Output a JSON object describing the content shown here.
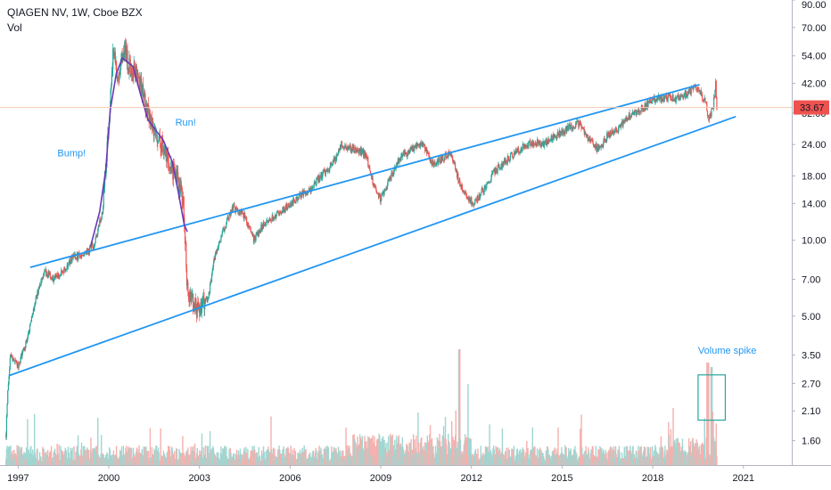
{
  "header": {
    "title": "QIAGEN NV, 1W, Cboe BZX",
    "indicator": "Vol"
  },
  "colors": {
    "up": "#26a69a",
    "down": "#ef5350",
    "volume_up": "#9fd6d1",
    "volume_down": "#f5b0ae",
    "trendline": "#2196f3",
    "curve": "#673ab7",
    "annotation": "#2196f3",
    "price_line": "#f5c6b0",
    "price_badge": "#ef5350",
    "axis_line": "#b2b5be"
  },
  "chart_data": {
    "type": "candlestick",
    "scale": "log",
    "xlim": [
      1996.4,
      2022.6
    ],
    "ylim": [
      1.28,
      90
    ],
    "x_ticks": [
      "1997",
      "2000",
      "2003",
      "2006",
      "2009",
      "2012",
      "2015",
      "2018",
      "2021"
    ],
    "y_ticks": [
      "90.00",
      "70.00",
      "54.00",
      "42.00",
      "32.00",
      "24.00",
      "18.00",
      "14.00",
      "10.00",
      "7.00",
      "5.00",
      "3.50",
      "2.70",
      "2.10",
      "1.60"
    ],
    "last_price": "33.67",
    "last_price_value": 33.67,
    "price_path": [
      [
        1996.6,
        1.7
      ],
      [
        1996.65,
        2.5
      ],
      [
        1996.75,
        3.5
      ],
      [
        1997.0,
        3.2
      ],
      [
        1997.3,
        4.0
      ],
      [
        1997.6,
        6.0
      ],
      [
        1997.9,
        7.5
      ],
      [
        1998.2,
        7.0
      ],
      [
        1998.5,
        7.5
      ],
      [
        1998.8,
        8.5
      ],
      [
        1999.2,
        8.8
      ],
      [
        1999.5,
        9.5
      ],
      [
        1999.8,
        13.0
      ],
      [
        2000.0,
        30.0
      ],
      [
        2000.15,
        56.0
      ],
      [
        2000.3,
        45.0
      ],
      [
        2000.5,
        58.0
      ],
      [
        2000.7,
        48.0
      ],
      [
        2001.0,
        44.0
      ],
      [
        2001.3,
        32.0
      ],
      [
        2001.6,
        26.0
      ],
      [
        2001.9,
        22.0
      ],
      [
        2002.2,
        18.0
      ],
      [
        2002.45,
        15.0
      ],
      [
        2002.6,
        6.5
      ],
      [
        2002.8,
        5.5
      ],
      [
        2003.0,
        5.2
      ],
      [
        2003.3,
        6.0
      ],
      [
        2003.5,
        8.5
      ],
      [
        2003.8,
        11.0
      ],
      [
        2004.1,
        13.5
      ],
      [
        2004.5,
        12.5
      ],
      [
        2004.8,
        10.0
      ],
      [
        2005.1,
        11.5
      ],
      [
        2005.5,
        12.5
      ],
      [
        2005.9,
        13.5
      ],
      [
        2006.3,
        15.0
      ],
      [
        2006.7,
        16.0
      ],
      [
        2007.0,
        18.0
      ],
      [
        2007.4,
        20.0
      ],
      [
        2007.7,
        24.0
      ],
      [
        2008.1,
        23.0
      ],
      [
        2008.5,
        22.0
      ],
      [
        2008.8,
        16.0
      ],
      [
        2009.0,
        14.5
      ],
      [
        2009.3,
        17.5
      ],
      [
        2009.6,
        21.0
      ],
      [
        2010.0,
        23.0
      ],
      [
        2010.4,
        24.0
      ],
      [
        2010.7,
        20.0
      ],
      [
        2011.0,
        21.0
      ],
      [
        2011.3,
        22.5
      ],
      [
        2011.6,
        17.0
      ],
      [
        2011.9,
        14.5
      ],
      [
        2012.1,
        14.0
      ],
      [
        2012.4,
        16.0
      ],
      [
        2012.8,
        19.0
      ],
      [
        2013.2,
        21.0
      ],
      [
        2013.6,
        23.0
      ],
      [
        2014.0,
        24.5
      ],
      [
        2014.4,
        24.0
      ],
      [
        2014.8,
        26.0
      ],
      [
        2015.2,
        28.0
      ],
      [
        2015.6,
        29.0
      ],
      [
        2015.9,
        25.0
      ],
      [
        2016.2,
        23.0
      ],
      [
        2016.5,
        26.0
      ],
      [
        2016.9,
        28.0
      ],
      [
        2017.2,
        31.0
      ],
      [
        2017.6,
        33.0
      ],
      [
        2018.0,
        36.0
      ],
      [
        2018.4,
        37.0
      ],
      [
        2018.8,
        36.5
      ],
      [
        2019.1,
        38.0
      ],
      [
        2019.35,
        40.0
      ],
      [
        2019.6,
        38.5
      ],
      [
        2019.75,
        35.0
      ],
      [
        2019.85,
        30.0
      ],
      [
        2019.92,
        32.0
      ],
      [
        2020.0,
        34.0
      ],
      [
        2020.08,
        42.0
      ],
      [
        2020.12,
        33.67
      ]
    ],
    "trendlines": [
      {
        "name": "upper",
        "from": [
          1997.4,
          7.8
        ],
        "to": [
          2019.55,
          41.5
        ]
      },
      {
        "name": "lower",
        "from": [
          1996.7,
          2.9
        ],
        "to": [
          2020.75,
          31.0
        ]
      }
    ],
    "bump_curve": [
      [
        1999.4,
        9.5
      ],
      [
        1999.7,
        13.0
      ],
      [
        1999.9,
        19.0
      ],
      [
        2000.05,
        33.0
      ],
      [
        2000.25,
        46.0
      ],
      [
        2000.45,
        53.0
      ],
      [
        2000.8,
        49.0
      ],
      [
        2001.05,
        38.0
      ],
      [
        2001.3,
        30.0
      ],
      [
        2001.8,
        25.0
      ],
      [
        2002.1,
        20.5
      ],
      [
        2002.3,
        15.5
      ],
      [
        2002.5,
        11.5
      ],
      [
        2002.6,
        10.8
      ]
    ],
    "annotations": [
      {
        "text": "Bump!",
        "at": [
          1998.3,
          21.5
        ]
      },
      {
        "text": "Run!",
        "at": [
          2002.2,
          28.5
        ]
      },
      {
        "text": "Volume spike",
        "at": [
          2019.5,
          3.55
        ]
      }
    ],
    "volume_spike_box": {
      "x": [
        2019.5,
        2020.4
      ],
      "y": [
        1.93,
        2.92
      ]
    }
  }
}
